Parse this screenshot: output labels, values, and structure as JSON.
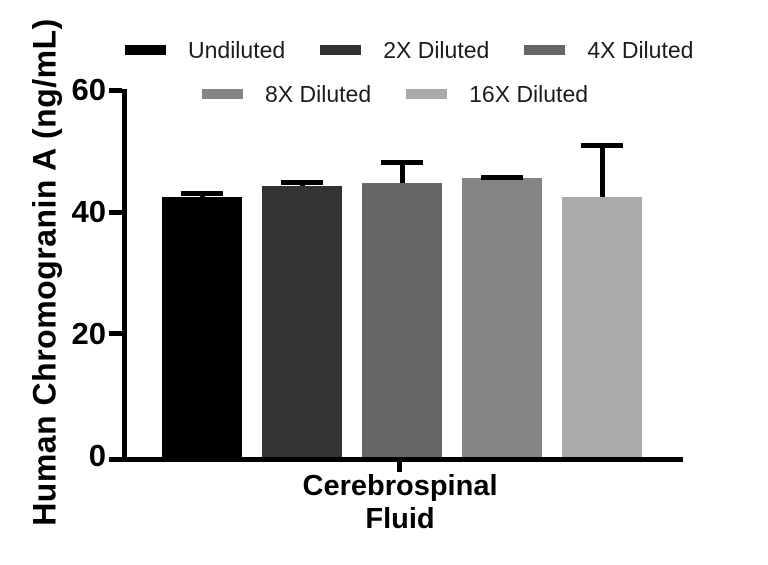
{
  "chart_data": {
    "type": "bar",
    "title": "",
    "ylabel": "Human Chromogranin A (ng/mL)",
    "xlabel": "",
    "categories": [
      "Cerebrospinal Fluid"
    ],
    "ylim": [
      0,
      60
    ],
    "yticks": [
      60,
      40,
      20,
      0
    ],
    "grid": false,
    "legend_position": "top, two rows",
    "error_bars": "upper SD whiskers with caps",
    "axis_color": "#000000",
    "legend_text_color": "#1c1c1c",
    "series": [
      {
        "name": "Undiluted",
        "color": "#000000",
        "values": [
          42.5
        ],
        "sd": [
          1.0
        ]
      },
      {
        "name": "2X Diluted",
        "color": "#333333",
        "values": [
          44.3
        ],
        "sd": [
          0.9
        ]
      },
      {
        "name": "4X Diluted",
        "color": "#666666",
        "values": [
          44.7
        ],
        "sd": [
          3.9
        ]
      },
      {
        "name": "8X Diluted",
        "color": "#848484",
        "values": [
          45.6
        ],
        "sd": [
          0.4
        ]
      },
      {
        "name": "16X Diluted",
        "color": "#aaaaaa",
        "values": [
          42.5
        ],
        "sd": [
          8.8
        ]
      }
    ],
    "legend_rows": [
      3,
      2
    ]
  }
}
